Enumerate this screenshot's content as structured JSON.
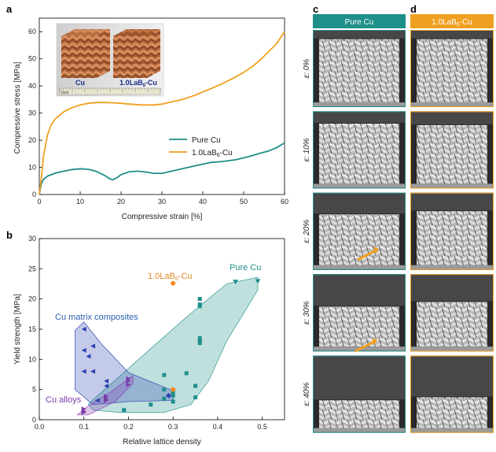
{
  "panels": {
    "a": "a",
    "b": "b",
    "c": "c",
    "d": "d"
  },
  "colors": {
    "teal": "#1e8f8a",
    "orange": "#f0a020",
    "blue": "#2a3fb0",
    "purple": "#7a3aa8",
    "lab_orange": "#d98a2a"
  },
  "chart_data": [
    {
      "panel": "a",
      "type": "line",
      "xlabel": "Compressive strain [%]",
      "ylabel": "Compressive stress [MPa]",
      "xlim": [
        0,
        60
      ],
      "ylim": [
        0,
        65
      ],
      "xticks": [
        0,
        10,
        20,
        30,
        40,
        50,
        60
      ],
      "yticks": [
        0,
        10,
        20,
        30,
        40,
        50,
        60
      ],
      "legend_position": "center-right",
      "series": [
        {
          "name": "Pure Cu",
          "color": "#1e8f8a",
          "x": [
            0,
            0.5,
            1,
            2,
            4,
            6,
            8,
            10,
            12,
            14,
            16,
            17,
            18,
            19,
            20,
            22,
            24,
            26,
            28,
            30,
            32,
            35,
            38,
            40,
            42,
            45,
            48,
            50,
            52,
            54,
            56,
            58,
            60
          ],
          "y": [
            0,
            4,
            5.5,
            6.8,
            7.9,
            8.6,
            9.2,
            9.5,
            9.3,
            8.5,
            7,
            6,
            5.4,
            6.2,
            7.3,
            8.4,
            8.6,
            8.3,
            7.8,
            7.8,
            8.5,
            9.5,
            10.5,
            11.2,
            11.8,
            12.2,
            12.8,
            13.5,
            14.3,
            15.2,
            16,
            17.2,
            19
          ]
        },
        {
          "name": "1.0LaB6-Cu",
          "color": "#f0a020",
          "x": [
            0,
            0.5,
            1,
            2,
            3,
            4,
            6,
            8,
            10,
            12,
            14,
            16,
            18,
            20,
            22,
            25,
            28,
            30,
            32,
            35,
            38,
            40,
            42,
            45,
            48,
            50,
            52,
            54,
            56,
            58,
            60
          ],
          "y": [
            0,
            6,
            14,
            22,
            26,
            28,
            30.5,
            32,
            33,
            33.6,
            33.9,
            33.9,
            33.8,
            33.6,
            33.3,
            33,
            33,
            33.3,
            34,
            35,
            36.5,
            37.8,
            39,
            41,
            43.3,
            45,
            47,
            49.5,
            52.5,
            55.5,
            60
          ]
        }
      ],
      "inset": {
        "labels": [
          "Cu",
          "1.0LaB6-Cu"
        ],
        "ruler_label": "0cm"
      }
    },
    {
      "panel": "b",
      "type": "scatter",
      "xlabel": "Relative lattice density",
      "ylabel": "Yield strength [MPa]",
      "xlim": [
        0,
        0.55
      ],
      "ylim": [
        0,
        30
      ],
      "xticks": [
        0.0,
        0.1,
        0.2,
        0.3,
        0.4,
        0.5
      ],
      "yticks": [
        0,
        5,
        10,
        15,
        20,
        25,
        30
      ],
      "groups": [
        {
          "name": "Pure Cu",
          "color": "#1e8f8a",
          "points": [
            [
              0.49,
              22.9
            ],
            [
              0.44,
              22.8
            ],
            [
              0.36,
              20
            ],
            [
              0.36,
              19.1
            ],
            [
              0.36,
              18.8
            ],
            [
              0.36,
              13.5
            ],
            [
              0.36,
              13.1
            ],
            [
              0.36,
              12.7
            ],
            [
              0.33,
              7.7
            ],
            [
              0.28,
              7.4
            ],
            [
              0.35,
              5.6
            ],
            [
              0.28,
              5
            ],
            [
              0.3,
              4.5
            ],
            [
              0.3,
              4
            ],
            [
              0.35,
              3.7
            ],
            [
              0.28,
              3.5
            ],
            [
              0.25,
              2.5
            ],
            [
              0.19,
              1.6
            ],
            [
              0.3,
              3
            ]
          ]
        },
        {
          "name": "Cu matrix composites",
          "color": "#2a3fb0",
          "points": [
            [
              0.1,
              15
            ],
            [
              0.12,
              12.2
            ],
            [
              0.1,
              11.5
            ],
            [
              0.11,
              10.5
            ],
            [
              0.1,
              8
            ],
            [
              0.12,
              8
            ],
            [
              0.15,
              6.4
            ],
            [
              0.15,
              5.6
            ],
            [
              0.13,
              3.2
            ],
            [
              0.29,
              4
            ]
          ]
        },
        {
          "name": "Cu alloys",
          "color": "#7a3aa8",
          "points": [
            [
              0.2,
              6.8
            ],
            [
              0.2,
              6.4
            ],
            [
              0.2,
              5.8
            ],
            [
              0.15,
              3.9
            ],
            [
              0.15,
              3.5
            ],
            [
              0.15,
              3.2
            ],
            [
              0.1,
              1.8
            ],
            [
              0.1,
              1.4
            ],
            [
              0.1,
              1.2
            ]
          ]
        },
        {
          "name": "1.0LaB6-Cu",
          "color": "#f08a20",
          "points": [
            [
              0.3,
              22.6
            ],
            [
              0.3,
              5
            ]
          ]
        }
      ]
    }
  ],
  "panel_c": {
    "header": "Pure Cu",
    "color": "#1e8f8a"
  },
  "panel_d": {
    "header": "1.0LaB6-Cu",
    "color": "#f0a020"
  },
  "strain_rows": [
    {
      "label": "ε: 0%"
    },
    {
      "label": "ε: 10%"
    },
    {
      "label": "ε: 20%"
    },
    {
      "label": "ε: 30%"
    },
    {
      "label": "ε: 40%"
    }
  ]
}
